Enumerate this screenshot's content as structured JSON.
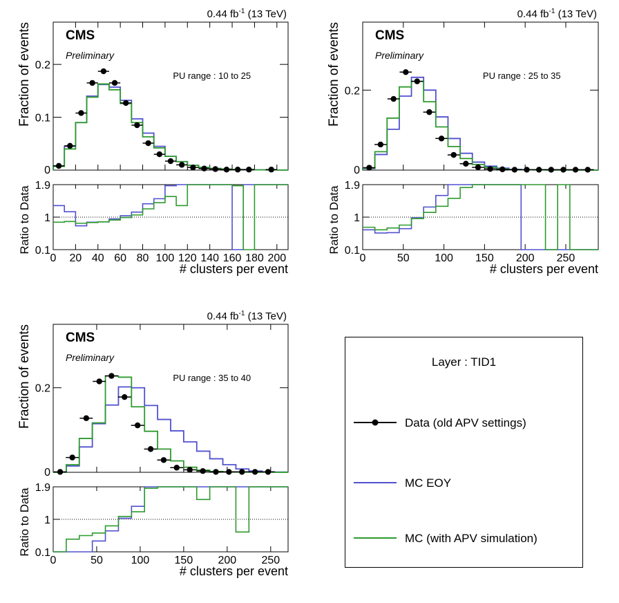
{
  "legend": {
    "title": "Layer : TID1",
    "entries": [
      {
        "label": "Data (old APV settings)",
        "color": "#000000",
        "style": "marker"
      },
      {
        "label": "MC EOY",
        "color": "#5050d0",
        "style": "line"
      },
      {
        "label": "MC (with APV simulation)",
        "color": "#2e9a2e",
        "style": "line"
      }
    ]
  },
  "chart_data": [
    {
      "type": "histogram-ratio",
      "lumi": "0.44 fb",
      "lumi_sup": "-1",
      "energy": "(13 TeV)",
      "experiment": "CMS",
      "status": "Preliminary",
      "annotation": "PU range : 10 to 25",
      "xlabel": "# clusters per event",
      "ylabel": "Fraction of events",
      "ratio_ylabel": "Ratio to Data",
      "xlim": [
        0,
        210
      ],
      "ylim": [
        0,
        0.28
      ],
      "ratio_ylim": [
        0.1,
        1.9
      ],
      "xticks": [
        0,
        20,
        40,
        60,
        80,
        100,
        120,
        140,
        160,
        180,
        200
      ],
      "yticks": [
        0.1,
        0.2
      ],
      "ratio_yticks": [
        "0.1",
        "1",
        "1.9"
      ],
      "bin_edges": [
        0,
        10,
        20,
        30,
        40,
        50,
        60,
        70,
        80,
        90,
        100,
        110,
        120,
        130,
        140,
        150,
        160,
        170,
        180,
        190,
        200,
        210
      ],
      "data_x": [
        5,
        15,
        25,
        35,
        45,
        55,
        65,
        75,
        85,
        95,
        105,
        115,
        125,
        135,
        145,
        155,
        165,
        175,
        195
      ],
      "data_y": [
        0.008,
        0.046,
        0.108,
        0.165,
        0.187,
        0.165,
        0.127,
        0.085,
        0.051,
        0.03,
        0.017,
        0.01,
        0.005,
        0.003,
        0.002,
        0.001,
        0.001,
        0.001,
        0.001
      ],
      "mc_eoy": [
        0.008,
        0.045,
        0.09,
        0.14,
        0.162,
        0.157,
        0.132,
        0.097,
        0.07,
        0.045,
        0.026,
        0.016,
        0.009,
        0.005,
        0.003,
        0.002,
        0.001,
        0.001,
        0.0005,
        0.0003,
        0.0002
      ],
      "mc_apv": [
        0.007,
        0.04,
        0.09,
        0.138,
        0.163,
        0.152,
        0.126,
        0.09,
        0.063,
        0.042,
        0.026,
        0.016,
        0.009,
        0.005,
        0.003,
        0.002,
        0.001,
        0.001,
        0.0005,
        0.0003,
        0.0002
      ],
      "ratio_eoy": [
        1.32,
        1.15,
        0.76,
        0.86,
        0.87,
        0.95,
        1.04,
        1.14,
        1.37,
        1.51,
        1.87,
        1.9,
        1.9,
        1.9,
        1.9,
        1.9,
        0.1,
        1.9,
        1.9,
        1.9,
        1.9
      ],
      "ratio_apv": [
        0.86,
        0.88,
        0.83,
        0.85,
        0.87,
        0.92,
        0.99,
        1.06,
        1.23,
        1.4,
        1.57,
        1.32,
        1.9,
        1.9,
        1.9,
        1.9,
        1.87,
        0.1,
        1.9,
        1.9,
        1.9
      ]
    },
    {
      "type": "histogram-ratio",
      "lumi": "0.44 fb",
      "lumi_sup": "-1",
      "energy": "(13 TeV)",
      "experiment": "CMS",
      "status": "Preliminary",
      "annotation": "PU range : 25 to 35",
      "xlabel": "# clusters per event",
      "ylabel": "Fraction of events",
      "ratio_ylabel": "Ratio to Data",
      "xlim": [
        0,
        290
      ],
      "ylim": [
        0,
        0.37
      ],
      "ratio_ylim": [
        0.1,
        1.9
      ],
      "xticks": [
        0,
        50,
        100,
        150,
        200,
        250
      ],
      "yticks": [
        0.2
      ],
      "ratio_yticks": [
        "0.1",
        "1",
        "1.9"
      ],
      "bin_edges": [
        0,
        15,
        30,
        45,
        60,
        75,
        90,
        105,
        120,
        135,
        150,
        165,
        180,
        195,
        210,
        225,
        240,
        255,
        270,
        285,
        290
      ],
      "data_x": [
        8,
        22,
        38,
        53,
        67,
        82,
        97,
        112,
        127,
        142,
        157,
        172,
        187,
        202,
        217,
        232,
        247,
        262,
        277
      ],
      "data_y": [
        0.006,
        0.064,
        0.178,
        0.245,
        0.222,
        0.145,
        0.079,
        0.038,
        0.016,
        0.007,
        0.003,
        0.002,
        0.001,
        0.001,
        0.001,
        0.001,
        0.001,
        0.001,
        0.001
      ],
      "mc_eoy": [
        0.004,
        0.039,
        0.102,
        0.185,
        0.232,
        0.2,
        0.133,
        0.079,
        0.042,
        0.02,
        0.01,
        0.005,
        0.002,
        0.001,
        0.0005,
        0.0003,
        0.0002,
        0.0001,
        0.0001,
        0.0001
      ],
      "mc_apv": [
        0.005,
        0.046,
        0.13,
        0.208,
        0.222,
        0.171,
        0.108,
        0.059,
        0.029,
        0.014,
        0.007,
        0.003,
        0.001,
        0.001,
        0.0005,
        0.0003,
        0.0002,
        0.0001,
        0.0001,
        0.0001
      ],
      "ratio_eoy": [
        0.65,
        0.56,
        0.57,
        0.68,
        0.98,
        1.28,
        1.6,
        1.9,
        1.9,
        1.9,
        1.9,
        1.9,
        1.9,
        0.1,
        0.1,
        0.1,
        0.1,
        0.1,
        0.1,
        0.1
      ],
      "ratio_apv": [
        0.72,
        0.65,
        0.7,
        0.78,
        0.96,
        1.13,
        1.3,
        1.52,
        1.82,
        1.9,
        1.9,
        1.9,
        1.9,
        1.9,
        1.9,
        0.1,
        1.9,
        0.1,
        0.1,
        0.1
      ]
    },
    {
      "type": "histogram-ratio",
      "lumi": "0.44 fb",
      "lumi_sup": "-1",
      "energy": "(13 TeV)",
      "experiment": "CMS",
      "status": "Preliminary",
      "annotation": "PU range : 35 to 40",
      "xlabel": "# clusters per event",
      "ylabel": "Fraction of events",
      "ratio_ylabel": "Ratio to Data",
      "xlim": [
        0,
        270
      ],
      "ylim": [
        0,
        0.35
      ],
      "ratio_ylim": [
        0.1,
        1.9
      ],
      "xticks": [
        0,
        50,
        100,
        150,
        200,
        250
      ],
      "yticks": [
        0.2
      ],
      "ratio_yticks": [
        "0.1",
        "1",
        "1.9"
      ],
      "bin_edges": [
        0,
        15,
        30,
        45,
        60,
        75,
        90,
        105,
        120,
        135,
        150,
        165,
        180,
        195,
        210,
        225,
        240,
        255,
        270
      ],
      "data_x": [
        8,
        22,
        38,
        53,
        67,
        82,
        97,
        112,
        127,
        142,
        157,
        172,
        187,
        202,
        217,
        232,
        247
      ],
      "data_y": [
        0.001,
        0.035,
        0.128,
        0.215,
        0.228,
        0.178,
        0.111,
        0.055,
        0.029,
        0.011,
        0.006,
        0.003,
        0.001,
        0.001,
        0.001,
        0.001,
        0.001
      ],
      "mc_eoy": [
        0.0,
        0.015,
        0.06,
        0.115,
        0.159,
        0.202,
        0.2,
        0.158,
        0.125,
        0.098,
        0.072,
        0.05,
        0.032,
        0.018,
        0.008,
        0.003,
        0.001,
        0.0005
      ],
      "mc_apv": [
        0.0,
        0.018,
        0.08,
        0.117,
        0.228,
        0.225,
        0.155,
        0.097,
        0.055,
        0.027,
        0.012,
        0.005,
        0.002,
        0.001,
        0.0005,
        0.0003,
        0.0002,
        0.0001
      ],
      "ratio_eoy": [
        0.1,
        0.1,
        0.1,
        0.4,
        0.68,
        1.03,
        1.36,
        1.9,
        1.9,
        1.9,
        1.9,
        1.9,
        1.9,
        1.9,
        1.9,
        1.9,
        1.9,
        1.9
      ],
      "ratio_apv": [
        0.1,
        0.45,
        0.55,
        0.62,
        0.82,
        1.08,
        1.21,
        1.86,
        1.9,
        1.9,
        1.9,
        1.55,
        1.9,
        1.9,
        0.65,
        1.9,
        1.9,
        1.9
      ]
    }
  ]
}
